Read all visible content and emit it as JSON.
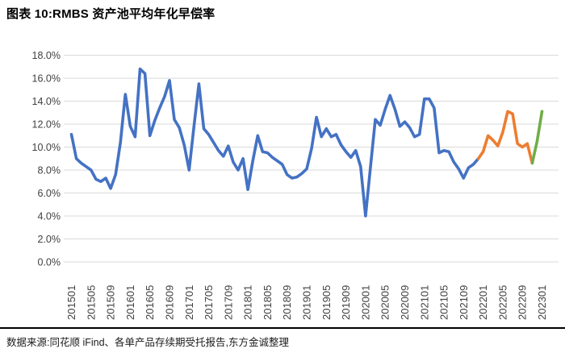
{
  "header": {
    "title": "图表 10:RMBS 资产池平均年化早偿率"
  },
  "footer": {
    "source": "数据来源:同花顺 iFind、各单产品存续期受托报告,东方金诚整理"
  },
  "chart_data": {
    "type": "line",
    "title": "图表 10:RMBS 资产池平均年化早偿率",
    "xlabel": "",
    "ylabel": "",
    "grid": true,
    "legend_position": "none",
    "ylim": [
      0,
      18
    ],
    "ytick_step": 2,
    "ytick_labels": [
      "0.0%",
      "2.0%",
      "4.0%",
      "6.0%",
      "8.0%",
      "10.0%",
      "12.0%",
      "14.0%",
      "16.0%",
      "18.0%"
    ],
    "xtick_every": 4,
    "xtick_labels": [
      "201501",
      "201505",
      "201509",
      "201601",
      "201605",
      "201609",
      "201701",
      "201705",
      "201709",
      "201801",
      "201805",
      "201809",
      "201901",
      "201905",
      "201909",
      "202001",
      "202005",
      "202009",
      "202101",
      "202105",
      "202109",
      "202201",
      "202205",
      "202209",
      "202301"
    ],
    "x": [
      "201501",
      "201502",
      "201503",
      "201504",
      "201505",
      "201506",
      "201507",
      "201508",
      "201509",
      "201510",
      "201511",
      "201512",
      "201601",
      "201602",
      "201603",
      "201604",
      "201605",
      "201606",
      "201607",
      "201608",
      "201609",
      "201610",
      "201611",
      "201612",
      "201701",
      "201702",
      "201703",
      "201704",
      "201705",
      "201706",
      "201707",
      "201708",
      "201709",
      "201710",
      "201711",
      "201712",
      "201801",
      "201802",
      "201803",
      "201804",
      "201805",
      "201806",
      "201807",
      "201808",
      "201809",
      "201810",
      "201811",
      "201812",
      "201901",
      "201902",
      "201903",
      "201904",
      "201905",
      "201906",
      "201907",
      "201908",
      "201909",
      "201910",
      "201911",
      "201912",
      "202001",
      "202002",
      "202003",
      "202004",
      "202005",
      "202006",
      "202007",
      "202008",
      "202009",
      "202010",
      "202011",
      "202012",
      "202101",
      "202102",
      "202103",
      "202104",
      "202105",
      "202106",
      "202107",
      "202108",
      "202109",
      "202110",
      "202111",
      "202112",
      "202201",
      "202202",
      "202203",
      "202204",
      "202205",
      "202206",
      "202207",
      "202208",
      "202209",
      "202210",
      "202211",
      "202212",
      "202301"
    ],
    "values": [
      11.1,
      9.0,
      8.6,
      8.3,
      8.0,
      7.2,
      7.0,
      7.3,
      6.4,
      7.6,
      10.4,
      14.6,
      11.8,
      10.9,
      16.8,
      16.4,
      11.0,
      12.3,
      13.4,
      14.4,
      15.8,
      12.4,
      11.7,
      10.2,
      8.0,
      11.8,
      15.5,
      11.6,
      11.1,
      10.4,
      9.7,
      9.2,
      10.1,
      8.7,
      8.0,
      9.0,
      6.3,
      8.8,
      11.0,
      9.6,
      9.5,
      9.1,
      8.8,
      8.5,
      7.6,
      7.3,
      7.4,
      7.7,
      8.1,
      9.9,
      12.6,
      10.9,
      11.6,
      10.9,
      11.1,
      10.2,
      9.6,
      9.1,
      9.7,
      8.3,
      4.0,
      8.2,
      12.4,
      11.9,
      13.3,
      14.5,
      13.3,
      11.8,
      12.2,
      11.7,
      10.9,
      11.1,
      14.2,
      14.2,
      13.4,
      9.5,
      9.7,
      9.6,
      8.7,
      8.1,
      7.3,
      8.2,
      8.5,
      9.0,
      9.6,
      11.0,
      10.6,
      10.1,
      11.3,
      13.1,
      12.9,
      10.3,
      10.0,
      10.3,
      8.6,
      10.5,
      13.1
    ],
    "segments": [
      {
        "name": "history-blue",
        "color": "#4472C4",
        "start": 0,
        "end": 83
      },
      {
        "name": "recent-orange",
        "color": "#ED7D31",
        "start": 83,
        "end": 94
      },
      {
        "name": "latest-green",
        "color": "#70AD47",
        "start": 94,
        "end": 96
      }
    ],
    "gridline_color": "#D9D9D9",
    "tick_label_color": "#404040"
  }
}
